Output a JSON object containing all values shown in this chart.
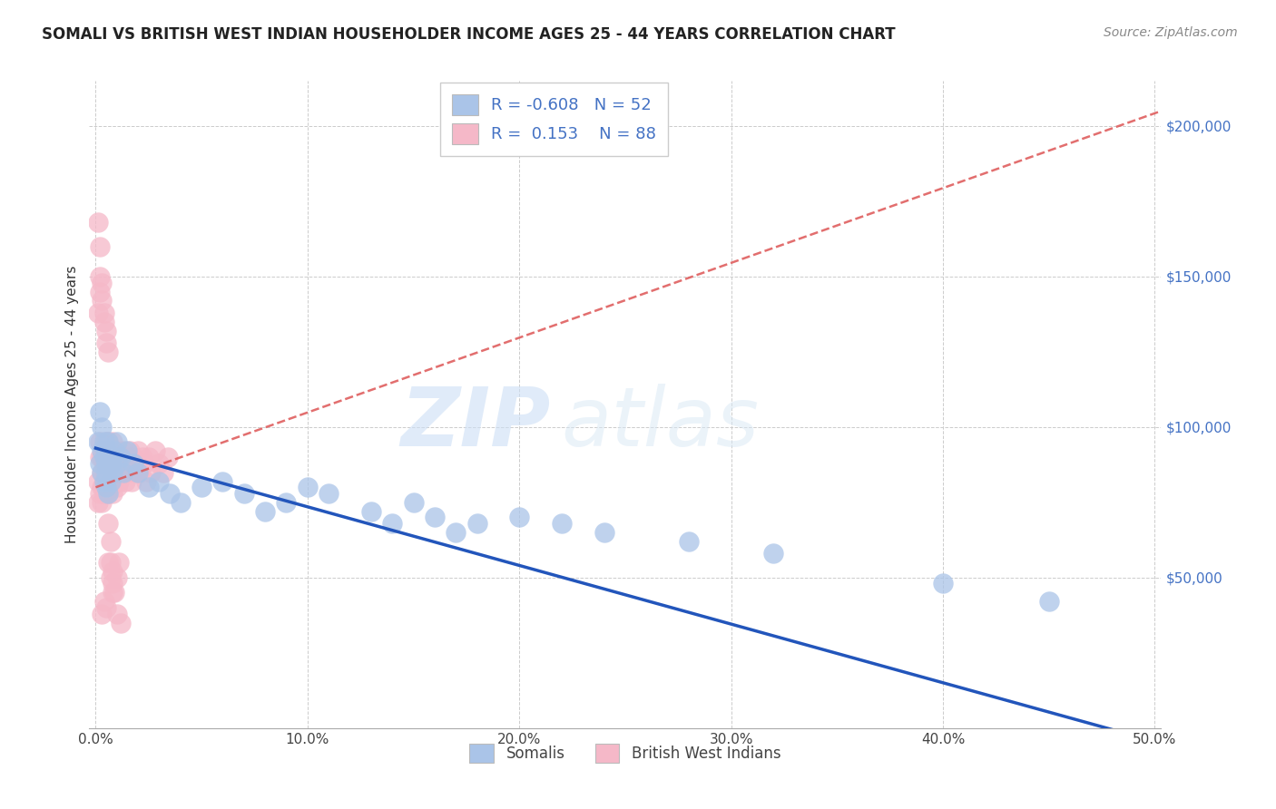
{
  "title": "SOMALI VS BRITISH WEST INDIAN HOUSEHOLDER INCOME AGES 25 - 44 YEARS CORRELATION CHART",
  "source": "Source: ZipAtlas.com",
  "ylabel": "Householder Income Ages 25 - 44 years",
  "xlim_min": -0.003,
  "xlim_max": 0.503,
  "ylim_min": 0,
  "ylim_max": 215000,
  "xticks": [
    0.0,
    0.1,
    0.2,
    0.3,
    0.4,
    0.5
  ],
  "xtick_labels": [
    "0.0%",
    "10.0%",
    "20.0%",
    "30.0%",
    "40.0%",
    "50.0%"
  ],
  "yticks": [
    50000,
    100000,
    150000,
    200000
  ],
  "ytick_labels": [
    "$50,000",
    "$100,000",
    "$150,000",
    "$200,000"
  ],
  "somali_R": -0.608,
  "somali_N": 52,
  "bwi_R": 0.153,
  "bwi_N": 88,
  "somali_dot_color": "#aac4e8",
  "bwi_dot_color": "#f5b8c8",
  "somali_line_color": "#2255bb",
  "bwi_line_color": "#dd5555",
  "somali_label": "Somalis",
  "bwi_label": "British West Indians",
  "background_color": "#ffffff",
  "grid_color": "#cccccc",
  "watermark_zip": "ZIP",
  "watermark_atlas": "atlas",
  "title_color": "#222222",
  "source_color": "#888888",
  "ytick_color": "#4472c4",
  "legend_color": "#4472c4",
  "somali_x": [
    0.001,
    0.002,
    0.002,
    0.003,
    0.003,
    0.003,
    0.004,
    0.004,
    0.004,
    0.005,
    0.005,
    0.005,
    0.005,
    0.006,
    0.006,
    0.006,
    0.007,
    0.007,
    0.008,
    0.008,
    0.009,
    0.01,
    0.01,
    0.012,
    0.013,
    0.015,
    0.018,
    0.02,
    0.025,
    0.03,
    0.035,
    0.04,
    0.05,
    0.06,
    0.07,
    0.08,
    0.09,
    0.1,
    0.11,
    0.13,
    0.14,
    0.15,
    0.16,
    0.17,
    0.18,
    0.2,
    0.22,
    0.24,
    0.28,
    0.32,
    0.4,
    0.45
  ],
  "somali_y": [
    95000,
    105000,
    88000,
    100000,
    92000,
    85000,
    90000,
    82000,
    95000,
    88000,
    80000,
    92000,
    85000,
    90000,
    78000,
    95000,
    88000,
    82000,
    90000,
    85000,
    92000,
    88000,
    95000,
    90000,
    85000,
    92000,
    88000,
    85000,
    80000,
    82000,
    78000,
    75000,
    80000,
    82000,
    78000,
    72000,
    75000,
    80000,
    78000,
    72000,
    68000,
    75000,
    70000,
    65000,
    68000,
    70000,
    68000,
    65000,
    62000,
    58000,
    48000,
    42000
  ],
  "bwi_x": [
    0.001,
    0.001,
    0.002,
    0.002,
    0.002,
    0.003,
    0.003,
    0.003,
    0.003,
    0.004,
    0.004,
    0.004,
    0.004,
    0.005,
    0.005,
    0.005,
    0.005,
    0.005,
    0.006,
    0.006,
    0.006,
    0.006,
    0.007,
    0.007,
    0.007,
    0.008,
    0.008,
    0.008,
    0.009,
    0.009,
    0.009,
    0.01,
    0.01,
    0.01,
    0.011,
    0.011,
    0.012,
    0.012,
    0.013,
    0.013,
    0.014,
    0.015,
    0.015,
    0.016,
    0.016,
    0.017,
    0.018,
    0.019,
    0.02,
    0.02,
    0.021,
    0.022,
    0.023,
    0.024,
    0.025,
    0.026,
    0.028,
    0.03,
    0.032,
    0.034,
    0.001,
    0.002,
    0.002,
    0.003,
    0.003,
    0.004,
    0.004,
    0.005,
    0.005,
    0.006,
    0.006,
    0.007,
    0.007,
    0.008,
    0.008,
    0.009,
    0.01,
    0.011,
    0.001,
    0.002,
    0.003,
    0.004,
    0.005,
    0.006,
    0.007,
    0.008,
    0.01,
    0.012
  ],
  "bwi_y": [
    82000,
    75000,
    90000,
    78000,
    95000,
    85000,
    80000,
    90000,
    75000,
    88000,
    82000,
    78000,
    92000,
    85000,
    90000,
    80000,
    95000,
    78000,
    88000,
    82000,
    95000,
    78000,
    92000,
    85000,
    80000,
    90000,
    78000,
    95000,
    88000,
    82000,
    90000,
    85000,
    92000,
    80000,
    88000,
    82000,
    90000,
    85000,
    92000,
    88000,
    82000,
    90000,
    85000,
    92000,
    88000,
    82000,
    90000,
    85000,
    92000,
    88000,
    85000,
    90000,
    88000,
    82000,
    90000,
    85000,
    92000,
    88000,
    85000,
    90000,
    138000,
    145000,
    150000,
    148000,
    142000,
    138000,
    135000,
    132000,
    128000,
    125000,
    68000,
    62000,
    55000,
    52000,
    48000,
    45000,
    50000,
    55000,
    168000,
    160000,
    38000,
    42000,
    40000,
    55000,
    50000,
    45000,
    38000,
    35000
  ]
}
